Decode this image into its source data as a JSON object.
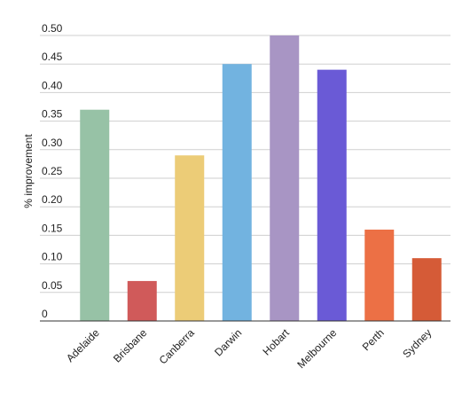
{
  "chart_data": {
    "type": "bar",
    "ylabel": "% improvement",
    "xlabel": "",
    "ylim": [
      0,
      0.5
    ],
    "yticks": [
      "0",
      "0.05",
      "0.10",
      "0.15",
      "0.20",
      "0.25",
      "0.30",
      "0.35",
      "0.40",
      "0.45",
      "0.50"
    ],
    "grid": true,
    "categories": [
      "Adelaide",
      "Brisbane",
      "Canberra",
      "Darwin",
      "Hobart",
      "Melbourne",
      "Perth",
      "Sydney"
    ],
    "values": [
      0.37,
      0.07,
      0.29,
      0.45,
      0.5,
      0.44,
      0.16,
      0.11
    ],
    "colors": [
      "#97c2a6",
      "#d05a5a",
      "#eccc77",
      "#72b3e0",
      "#a895c4",
      "#6a5ad6",
      "#ec7045",
      "#d55b37"
    ]
  }
}
